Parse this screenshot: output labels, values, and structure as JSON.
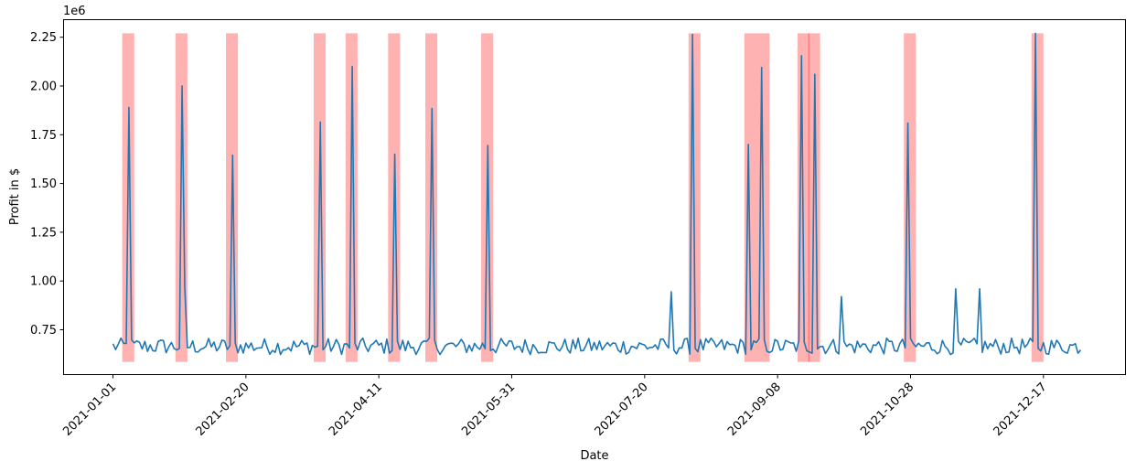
{
  "chart_data": {
    "type": "line",
    "title": "",
    "xlabel": "Date",
    "ylabel": "Profit in $",
    "y_offset_label": "1e6",
    "x_range": [
      0,
      364
    ],
    "ylim": [
      0.52,
      2.34
    ],
    "grid": false,
    "line_color": "#1f77b4",
    "band_color": "#ff0000",
    "x_ticks": [
      {
        "day": 0,
        "label": "2021-01-01"
      },
      {
        "day": 50,
        "label": "2021-02-20"
      },
      {
        "day": 100,
        "label": "2021-04-11"
      },
      {
        "day": 150,
        "label": "2021-05-31"
      },
      {
        "day": 200,
        "label": "2021-07-20"
      },
      {
        "day": 250,
        "label": "2021-09-08"
      },
      {
        "day": 300,
        "label": "2021-10-28"
      },
      {
        "day": 350,
        "label": "2021-12-17"
      }
    ],
    "y_ticks": [
      {
        "value": 0.75,
        "label": "0.75"
      },
      {
        "value": 1.0,
        "label": "1.00"
      },
      {
        "value": 1.25,
        "label": "1.25"
      },
      {
        "value": 1.5,
        "label": "1.50"
      },
      {
        "value": 1.75,
        "label": "1.75"
      },
      {
        "value": 2.0,
        "label": "2.00"
      },
      {
        "value": 2.25,
        "label": "2.25"
      }
    ],
    "base_level": 0.665,
    "spikes": [
      {
        "day": 6,
        "value": 1.89
      },
      {
        "day": 26,
        "value": 2.0
      },
      {
        "day": 27,
        "value": 0.97
      },
      {
        "day": 45,
        "value": 1.645
      },
      {
        "day": 78,
        "value": 1.815
      },
      {
        "day": 90,
        "value": 2.1
      },
      {
        "day": 106,
        "value": 1.65
      },
      {
        "day": 120,
        "value": 1.885
      },
      {
        "day": 141,
        "value": 1.695
      },
      {
        "day": 210,
        "value": 0.945
      },
      {
        "day": 218,
        "value": 2.265
      },
      {
        "day": 239,
        "value": 1.7
      },
      {
        "day": 244,
        "value": 2.095
      },
      {
        "day": 259,
        "value": 2.155
      },
      {
        "day": 264,
        "value": 2.06
      },
      {
        "day": 274,
        "value": 0.92
      },
      {
        "day": 299,
        "value": 1.81
      },
      {
        "day": 317,
        "value": 0.96
      },
      {
        "day": 326,
        "value": 0.96
      },
      {
        "day": 347,
        "value": 2.27
      }
    ],
    "highlight_bands": [
      [
        3.5,
        8.0
      ],
      [
        23.5,
        28.0
      ],
      [
        42.5,
        47.0
      ],
      [
        75.5,
        80.0
      ],
      [
        87.5,
        92.0
      ],
      [
        103.5,
        108.0
      ],
      [
        117.5,
        122.0
      ],
      [
        138.5,
        143.0
      ],
      [
        216.5,
        221.0
      ],
      [
        237.5,
        247.0
      ],
      [
        257.5,
        262.0
      ],
      [
        261.5,
        266.0
      ],
      [
        297.5,
        302.0
      ],
      [
        345.5,
        350.0
      ]
    ],
    "band_value_range": [
      0.585,
      2.27
    ]
  }
}
